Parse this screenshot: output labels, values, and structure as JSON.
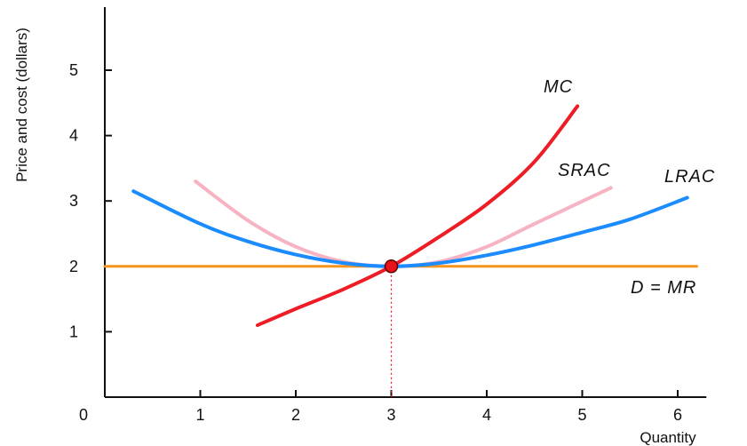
{
  "chart_data": {
    "type": "line",
    "ylabel": "Price and cost (dollars)",
    "xlabel": "Quantity",
    "origin_label": "0",
    "xlim": [
      0,
      6.3
    ],
    "ylim": [
      0,
      5.8
    ],
    "x_ticks": [
      1,
      2,
      3,
      4,
      5,
      6
    ],
    "y_ticks": [
      1,
      2,
      3,
      4,
      5
    ],
    "grid": false,
    "legend": "none",
    "equilibrium": {
      "x": 3,
      "y": 2,
      "marker_color": "#e8121b"
    },
    "series": [
      {
        "name": "MC",
        "color": "#ee1c24",
        "points": [
          [
            1.6,
            1.1
          ],
          [
            2.0,
            1.35
          ],
          [
            2.5,
            1.65
          ],
          [
            3.0,
            2.0
          ],
          [
            3.5,
            2.45
          ],
          [
            4.0,
            2.95
          ],
          [
            4.5,
            3.6
          ],
          [
            4.95,
            4.45
          ]
        ]
      },
      {
        "name": "SRAC",
        "color": "#f7b3c2",
        "points": [
          [
            0.95,
            3.3
          ],
          [
            1.5,
            2.7
          ],
          [
            2.0,
            2.3
          ],
          [
            2.5,
            2.07
          ],
          [
            3.0,
            2.0
          ],
          [
            3.5,
            2.07
          ],
          [
            4.0,
            2.3
          ],
          [
            4.5,
            2.65
          ],
          [
            5.3,
            3.2
          ]
        ]
      },
      {
        "name": "LRAC",
        "color": "#1a8cff",
        "points": [
          [
            0.3,
            3.15
          ],
          [
            1.0,
            2.65
          ],
          [
            1.5,
            2.38
          ],
          [
            2.0,
            2.18
          ],
          [
            2.5,
            2.05
          ],
          [
            3.0,
            2.0
          ],
          [
            3.5,
            2.05
          ],
          [
            4.0,
            2.17
          ],
          [
            4.5,
            2.33
          ],
          [
            5.0,
            2.52
          ],
          [
            5.5,
            2.72
          ],
          [
            6.1,
            3.05
          ]
        ]
      },
      {
        "name": "D = MR",
        "color": "#f7941d",
        "points": [
          [
            0.0,
            2.0
          ],
          [
            6.2,
            2.0
          ]
        ]
      }
    ]
  }
}
